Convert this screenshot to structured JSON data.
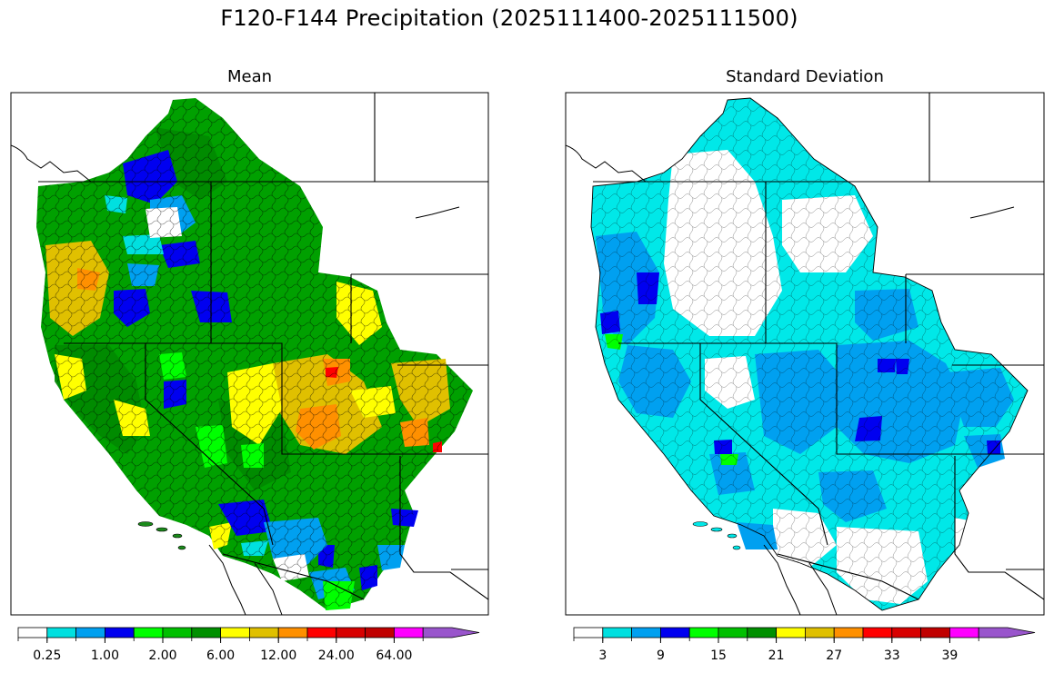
{
  "figure": {
    "title": "F120-F144 Precipitation (2025111400-2025111500)"
  },
  "panels": [
    {
      "title": "Mean",
      "colorbar": {
        "colors": [
          "#ffffff",
          "#00e0e0",
          "#00a0f0",
          "#0000f0",
          "#00ff00",
          "#00c000",
          "#009000",
          "#ffff00",
          "#e0c000",
          "#ff9000",
          "#ff0000",
          "#d80000",
          "#c00000",
          "#ff00ff",
          "#9955cc"
        ],
        "tick_labels": [
          "0.25",
          "1.00",
          "2.00",
          "6.00",
          "12.00",
          "24.00",
          "64.00"
        ],
        "tick_label_after_box": [
          1,
          3,
          5,
          7,
          9,
          11,
          13
        ],
        "extend": "max"
      }
    },
    {
      "title": "Standard Deviation",
      "colorbar": {
        "colors": [
          "#ffffff",
          "#00e0e0",
          "#00a0f0",
          "#0000f0",
          "#00ff00",
          "#00c000",
          "#009000",
          "#ffff00",
          "#e0c000",
          "#ff9000",
          "#ff0000",
          "#d80000",
          "#c00000",
          "#ff00ff",
          "#9955cc"
        ],
        "tick_labels": [
          "3",
          "9",
          "15",
          "21",
          "27",
          "33",
          "39"
        ],
        "tick_label_after_box": [
          1,
          3,
          5,
          7,
          9,
          11,
          13
        ],
        "extend": "max"
      }
    }
  ],
  "legend_colors": {
    "state_line": "#000000",
    "map_background": "#ffffff"
  }
}
